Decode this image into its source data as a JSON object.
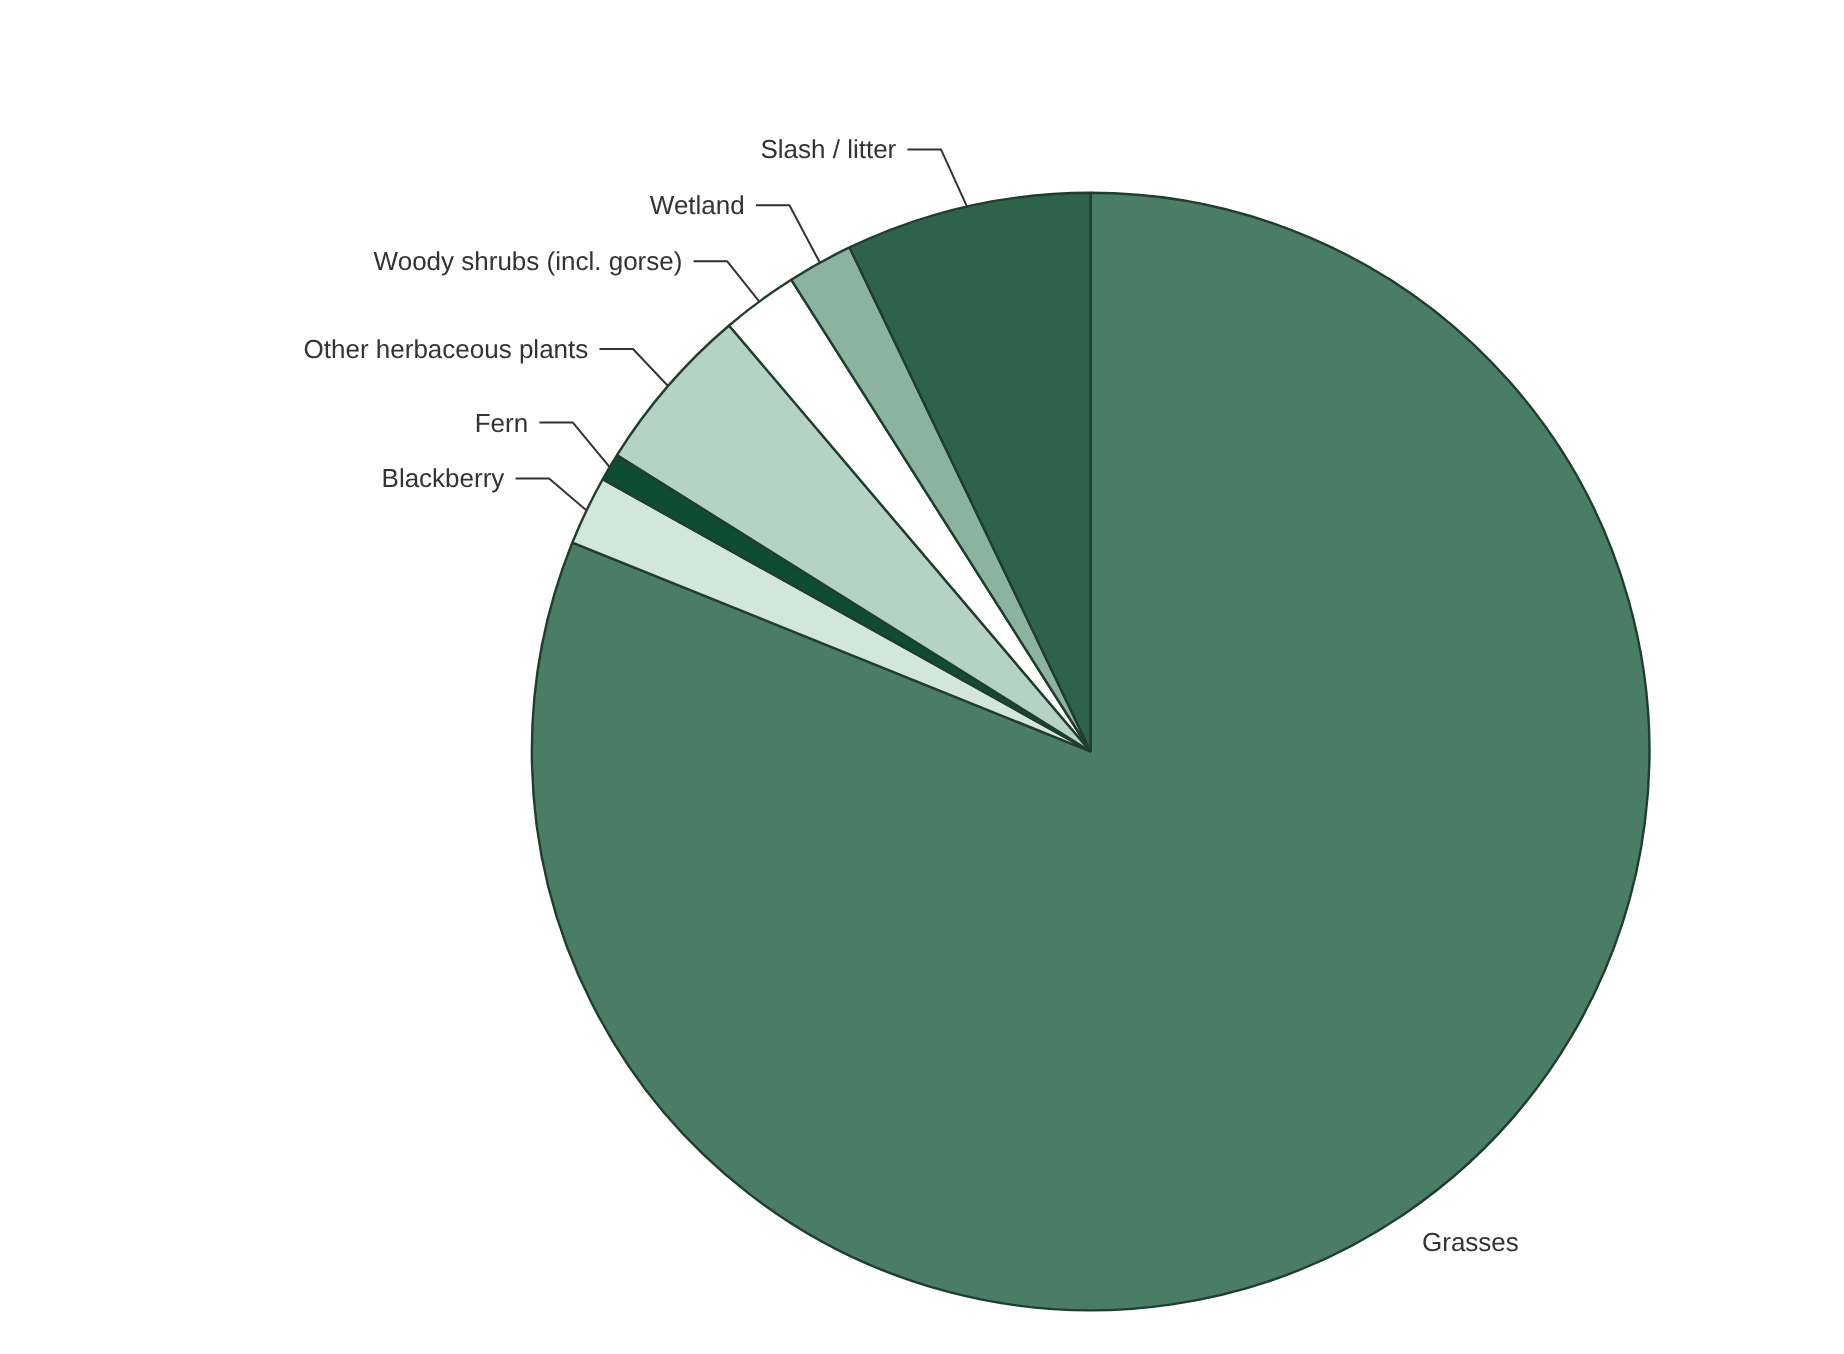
{
  "chart_data": {
    "type": "pie",
    "categories": [
      "Grasses",
      "Blackberry",
      "Fern",
      "Other herbaceous plants",
      "Woody shrubs (incl. gorse)",
      "Wetland",
      "Slash / litter"
    ],
    "values": [
      81.1,
      2.0,
      0.8,
      4.9,
      2.2,
      1.9,
      7.1
    ],
    "colors": [
      "#4a7d66",
      "#d3e6dc",
      "#0f4d33",
      "#b5d3c4",
      "#ffffff",
      "#8ab3a0",
      "#2c634a"
    ]
  }
}
